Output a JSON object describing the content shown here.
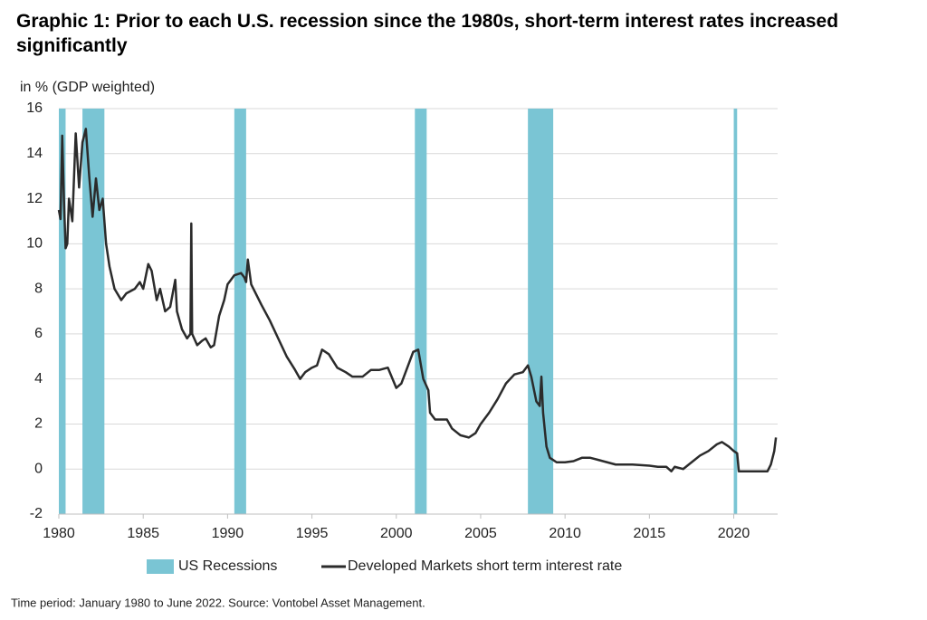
{
  "chart_data": {
    "type": "line",
    "title": "Graphic 1: Prior to each U.S. recession since the 1980s, short-term interest rates increased significantly",
    "y_axis_label": "in % (GDP weighted)",
    "footnote": "Time period: January 1980 to June 2022. Source: Vontobel Asset Management.",
    "xlim": [
      1980,
      2022.6
    ],
    "xticks": [
      1980,
      1985,
      1990,
      1995,
      2000,
      2005,
      2010,
      2015,
      2020
    ],
    "ylim": [
      -2,
      16
    ],
    "yticks": [
      -2,
      0,
      2,
      4,
      6,
      8,
      10,
      12,
      14,
      16
    ],
    "grid": true,
    "legend": "bottom",
    "recessions": {
      "name": "US Recessions",
      "color": "#7ac5d4",
      "ranges": [
        [
          1980.0,
          1980.4
        ],
        [
          1981.4,
          1982.7
        ],
        [
          1990.4,
          1991.1
        ],
        [
          2001.1,
          2001.8
        ],
        [
          2007.8,
          2009.3
        ],
        [
          2020.0,
          2020.2
        ]
      ]
    },
    "x": [
      1980.0,
      1980.1,
      1980.2,
      1980.3,
      1980.4,
      1980.5,
      1980.6,
      1980.8,
      1981.0,
      1981.2,
      1981.4,
      1981.6,
      1981.8,
      1982.0,
      1982.2,
      1982.4,
      1982.6,
      1982.8,
      1983.0,
      1983.3,
      1983.7,
      1984.0,
      1984.5,
      1984.8,
      1985.0,
      1985.3,
      1985.5,
      1985.8,
      1986.0,
      1986.3,
      1986.6,
      1986.9,
      1987.0,
      1987.3,
      1987.6,
      1987.8,
      1987.85,
      1987.9,
      1988.2,
      1988.5,
      1988.7,
      1989.0,
      1989.2,
      1989.5,
      1989.8,
      1990.0,
      1990.4,
      1990.8,
      1991.0,
      1991.1,
      1991.2,
      1991.4,
      1991.8,
      1992.0,
      1992.5,
      1993.0,
      1993.5,
      1994.0,
      1994.3,
      1994.6,
      1995.0,
      1995.3,
      1995.6,
      1996.0,
      1996.5,
      1997.0,
      1997.4,
      1998.0,
      1998.5,
      1999.0,
      1999.5,
      2000.0,
      2000.3,
      2000.8,
      2001.0,
      2001.3,
      2001.6,
      2001.9,
      2002.0,
      2002.3,
      2003.0,
      2003.3,
      2003.8,
      2004.3,
      2004.7,
      2005.0,
      2005.5,
      2006.0,
      2006.5,
      2007.0,
      2007.5,
      2007.8,
      2008.0,
      2008.3,
      2008.5,
      2008.6,
      2008.7,
      2008.9,
      2009.1,
      2009.5,
      2010.0,
      2010.5,
      2011.0,
      2011.5,
      2012.0,
      2012.5,
      2013.0,
      2014.0,
      2015.0,
      2015.5,
      2016.0,
      2016.3,
      2016.5,
      2017.0,
      2017.5,
      2018.0,
      2018.5,
      2019.0,
      2019.3,
      2019.7,
      2020.0,
      2020.2,
      2020.3,
      2021.0,
      2022.0,
      2022.2,
      2022.4,
      2022.5
    ],
    "series": [
      {
        "name": "Developed Markets short term interest rate",
        "color": "#2b2b2b",
        "values": [
          11.5,
          11.1,
          14.8,
          12.0,
          9.8,
          10.0,
          12.0,
          11.0,
          14.9,
          12.5,
          14.5,
          15.1,
          13.0,
          11.2,
          12.9,
          11.5,
          12.0,
          10.0,
          9.0,
          8.0,
          7.5,
          7.8,
          8.0,
          8.3,
          8.0,
          9.1,
          8.8,
          7.5,
          8.0,
          7.0,
          7.2,
          8.4,
          7.0,
          6.2,
          5.8,
          6.0,
          10.9,
          6.0,
          5.5,
          5.7,
          5.8,
          5.4,
          5.5,
          6.8,
          7.5,
          8.2,
          8.6,
          8.7,
          8.5,
          8.3,
          9.3,
          8.2,
          7.6,
          7.3,
          6.6,
          5.8,
          5.0,
          4.4,
          4.0,
          4.3,
          4.5,
          4.6,
          5.3,
          5.1,
          4.5,
          4.3,
          4.1,
          4.1,
          4.4,
          4.4,
          4.5,
          3.6,
          3.8,
          4.8,
          5.2,
          5.3,
          4.0,
          3.5,
          2.5,
          2.2,
          2.2,
          1.8,
          1.5,
          1.4,
          1.6,
          2.0,
          2.5,
          3.1,
          3.8,
          4.2,
          4.3,
          4.6,
          4.1,
          3.0,
          2.8,
          4.1,
          2.5,
          1.0,
          0.5,
          0.3,
          0.3,
          0.35,
          0.5,
          0.5,
          0.4,
          0.3,
          0.2,
          0.2,
          0.15,
          0.1,
          0.1,
          -0.1,
          0.1,
          0.0,
          0.3,
          0.6,
          0.8,
          1.1,
          1.2,
          1.0,
          0.8,
          0.7,
          -0.1,
          -0.1,
          -0.1,
          0.2,
          0.8,
          1.4
        ]
      }
    ]
  }
}
